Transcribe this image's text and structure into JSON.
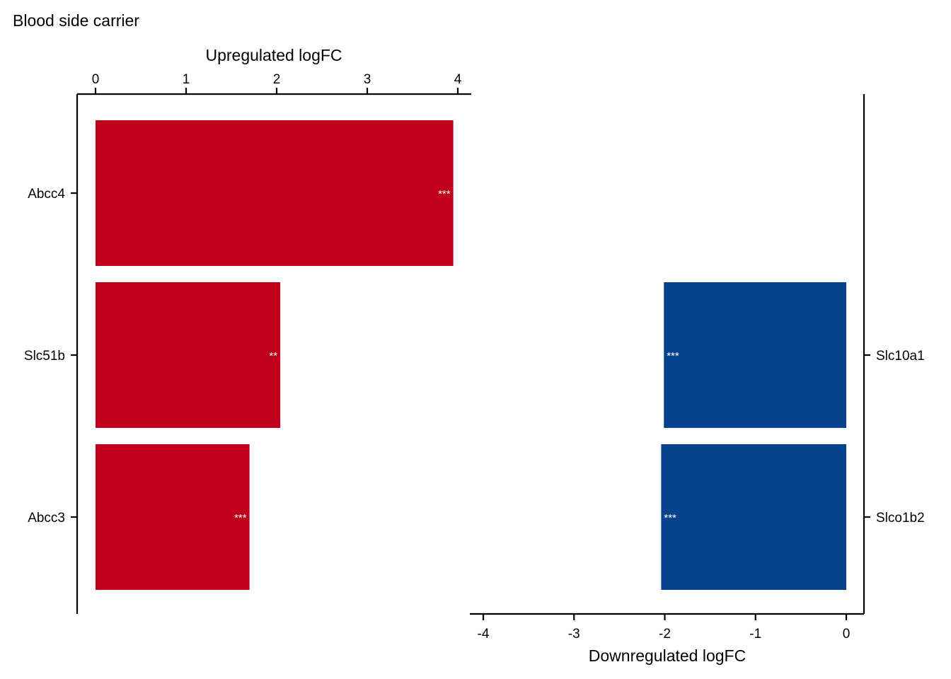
{
  "title": "Blood side carrier",
  "chart_data": [
    {
      "type": "bar",
      "orientation": "horizontal",
      "name": "upregulated",
      "xlabel": "Upregulated logFC",
      "xlim": [
        0,
        4
      ],
      "xticks": [
        "0",
        "1",
        "2",
        "3",
        "4"
      ],
      "categories": [
        "Abcc4",
        "Slc51b",
        "Abcc3"
      ],
      "values": [
        3.95,
        2.04,
        1.7
      ],
      "significance": [
        "***",
        "**",
        "***"
      ],
      "color": "#BF001B",
      "y_axis_side": "left",
      "x_axis_side": "top"
    },
    {
      "type": "bar",
      "orientation": "horizontal",
      "name": "downregulated",
      "xlabel": "Downregulated logFC",
      "xlim": [
        -4,
        0
      ],
      "xticks": [
        "-4",
        "-3",
        "-2",
        "-1",
        "0"
      ],
      "categories": [
        "Slc10a1",
        "Slco1b2"
      ],
      "values": [
        -2.01,
        -2.04
      ],
      "significance": [
        "***",
        "***"
      ],
      "color": "#08418C",
      "y_axis_side": "right",
      "x_axis_side": "bottom"
    }
  ]
}
